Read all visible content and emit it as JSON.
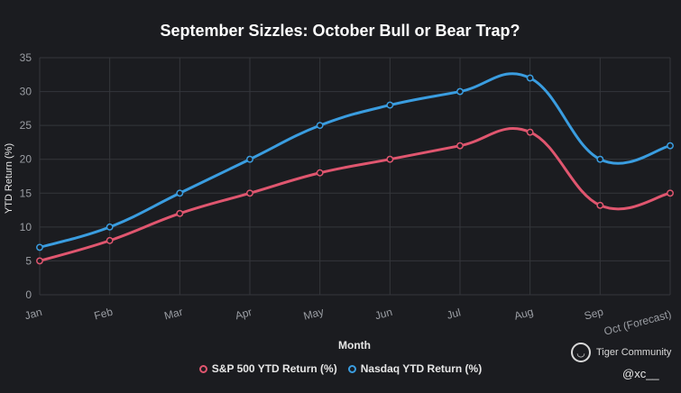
{
  "chart_data": {
    "type": "line",
    "title": "September Sizzles: October Bull or Bear Trap?",
    "xlabel": "Month",
    "ylabel": "YTD Return (%)",
    "ylim": [
      0,
      35
    ],
    "yticks": [
      0,
      5,
      10,
      15,
      20,
      25,
      30,
      35
    ],
    "grid": true,
    "legend_position": "bottom",
    "categories": [
      "Jan",
      "Feb",
      "Mar",
      "Apr",
      "May",
      "Jun",
      "Jul",
      "Aug",
      "Sep",
      "Oct (Forecast)"
    ],
    "series": [
      {
        "name": "S&P 500 YTD Return (%)",
        "color": "#e0566f",
        "values": [
          5,
          8,
          12,
          15,
          18,
          20,
          22,
          24,
          13.2,
          15
        ]
      },
      {
        "name": "Nasdaq YTD Return (%)",
        "color": "#3a9de0",
        "values": [
          7,
          10,
          15,
          20,
          25,
          28,
          30,
          32,
          20,
          22
        ]
      }
    ]
  },
  "branding": {
    "icon": "tiger-icon",
    "name": "Tiger Community",
    "handle": "@xc__"
  }
}
